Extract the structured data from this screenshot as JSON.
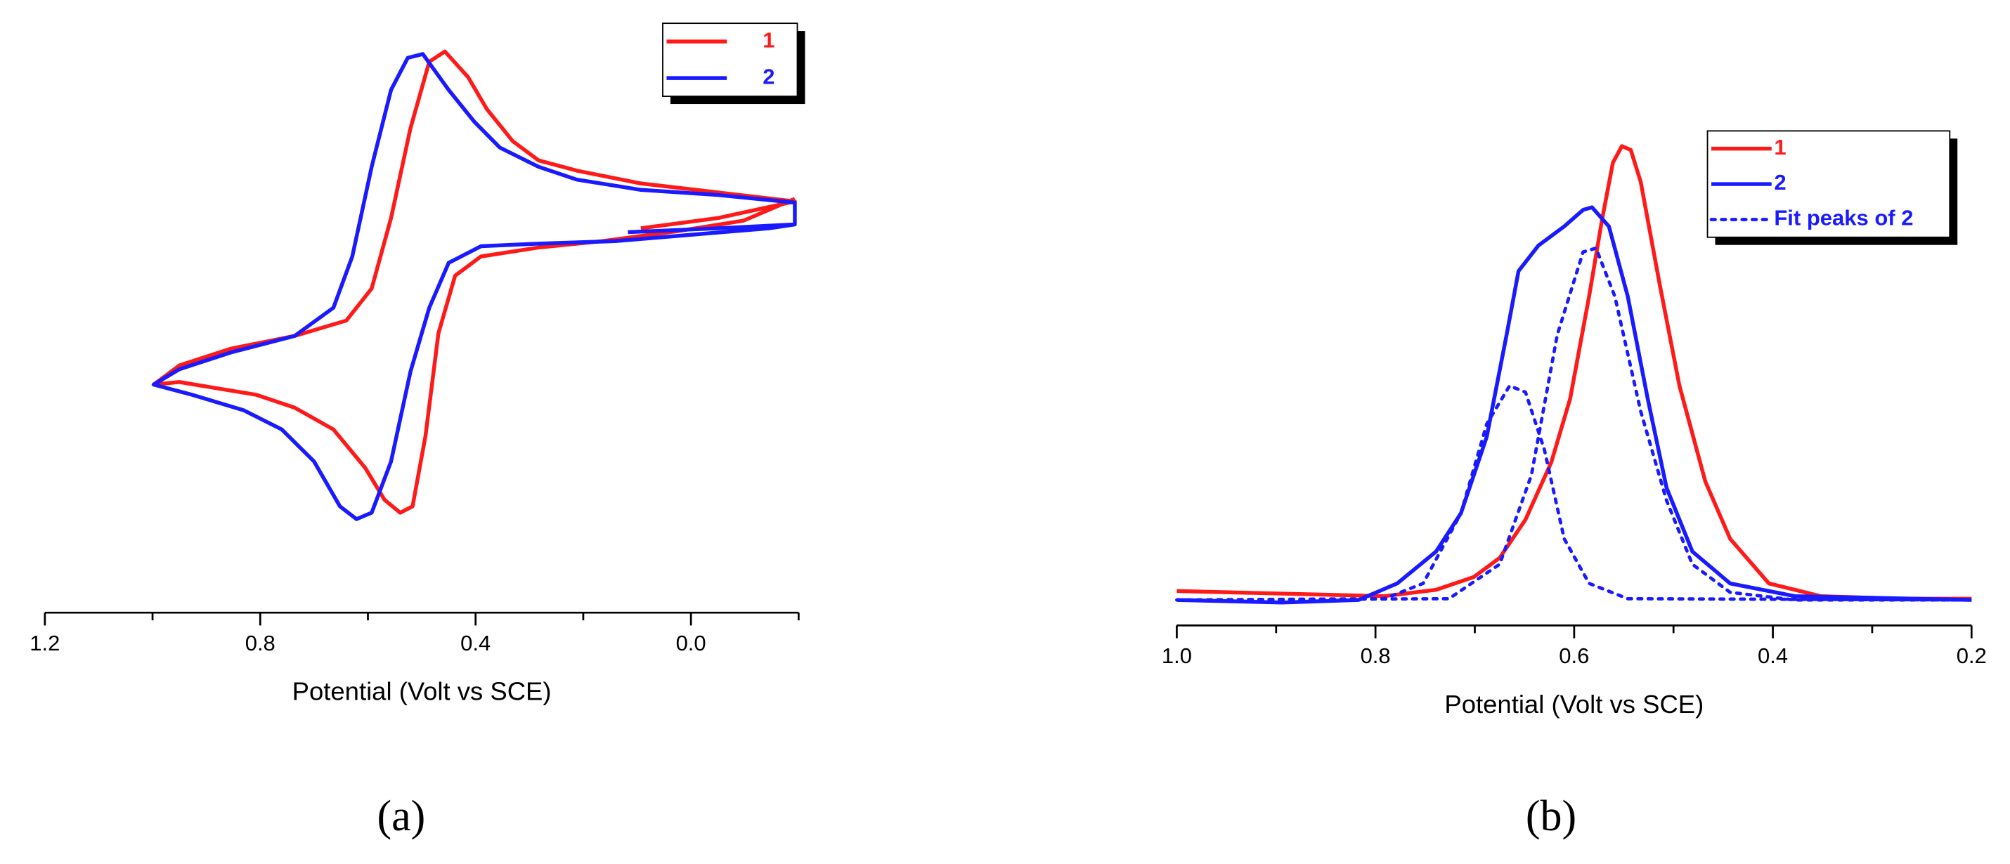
{
  "chart_data": [
    {
      "type": "line",
      "panel_label": "(a)",
      "x_label": "Potential (Volt vs SCE)",
      "xlim": [
        1.2,
        -0.2
      ],
      "xticks": [
        1.2,
        0.8,
        0.4,
        {
          "value": 0,
          "label": "0.0"
        }
      ],
      "xminorticks": [
        1.0,
        0.6,
        0.2,
        -0.2
      ],
      "ylim": [
        -1.78,
        2.8
      ],
      "legend": "upper right",
      "series": [
        {
          "name": "1",
          "color": "#ff1a1a",
          "style": "solid",
          "x": [
            0.093,
            -0.05,
            -0.193,
            -0.05,
            0.093,
            0.212,
            0.283,
            0.331,
            0.379,
            0.414,
            0.457,
            0.486,
            0.521,
            0.557,
            0.593,
            0.64,
            0.736,
            0.855,
            0.95,
            0.998,
            0.95,
            0.879,
            0.807,
            0.736,
            0.664,
            0.605,
            0.569,
            0.54,
            0.517,
            0.493,
            0.469,
            0.438,
            0.39,
            0.283,
            0.164,
            0.021,
            -0.098,
            -0.193
          ],
          "values": [
            1.22,
            1.3,
            1.43,
            1.5,
            1.57,
            1.67,
            1.75,
            1.9,
            2.15,
            2.4,
            2.6,
            2.52,
            2.0,
            1.3,
            0.75,
            0.5,
            0.38,
            0.28,
            0.15,
            0,
            0.02,
            -0.03,
            -0.08,
            -0.18,
            -0.35,
            -0.65,
            -0.9,
            -1.0,
            -0.95,
            -0.4,
            0.4,
            0.85,
            1.0,
            1.07,
            1.12,
            1.2,
            1.28,
            1.45
          ]
        },
        {
          "name": "2",
          "color": "#1a1aff",
          "style": "solid",
          "x": [
            0.117,
            -0.05,
            -0.193,
            -0.193,
            -0.05,
            0.093,
            0.212,
            0.283,
            0.355,
            0.402,
            0.45,
            0.498,
            0.526,
            0.557,
            0.593,
            0.629,
            0.664,
            0.736,
            0.855,
            0.95,
            0.998,
            0.926,
            0.831,
            0.76,
            0.7,
            0.652,
            0.621,
            0.593,
            0.557,
            0.521,
            0.486,
            0.45,
            0.39,
            0.283,
            0.14,
            -0.002,
            -0.145,
            -0.193
          ],
          "values": [
            1.19,
            1.22,
            1.25,
            1.42,
            1.48,
            1.52,
            1.6,
            1.7,
            1.85,
            2.05,
            2.3,
            2.58,
            2.55,
            2.3,
            1.7,
            1.0,
            0.6,
            0.38,
            0.25,
            0.12,
            0,
            -0.08,
            -0.2,
            -0.35,
            -0.6,
            -0.95,
            -1.05,
            -1.0,
            -0.6,
            0.1,
            0.6,
            0.95,
            1.08,
            1.1,
            1.12,
            1.17,
            1.22,
            1.25
          ]
        }
      ]
    },
    {
      "type": "line",
      "panel_label": "(b)",
      "x_label": "Potential (Volt vs SCE)",
      "xlim": [
        1.0,
        0.2
      ],
      "xticks": [
        {
          "value": 1,
          "label": "1.0"
        },
        0.8,
        0.6,
        0.4,
        0.2
      ],
      "xminorticks": [
        0.9,
        0.7,
        0.5,
        0.3
      ],
      "ylim": [
        -0.2,
        3.8
      ],
      "legend": "upper right",
      "series": [
        {
          "name": "1",
          "color": "#ff1a1a",
          "style": "solid",
          "x": [
            1.0,
            0.894,
            0.791,
            0.739,
            0.701,
            0.675,
            0.649,
            0.623,
            0.604,
            0.585,
            0.572,
            0.561,
            0.552,
            0.543,
            0.533,
            0.514,
            0.494,
            0.468,
            0.443,
            0.404,
            0.352,
            0.275,
            0.2
          ],
          "values": [
            0.07,
            0.05,
            0.03,
            0.08,
            0.18,
            0.33,
            0.63,
            1.08,
            1.58,
            2.38,
            2.98,
            3.43,
            3.56,
            3.53,
            3.28,
            2.48,
            1.68,
            0.93,
            0.48,
            0.13,
            0.03,
            0.01,
            0.01
          ]
        },
        {
          "name": "2",
          "color": "#1a1aff",
          "style": "solid",
          "x": [
            1.0,
            0.894,
            0.817,
            0.778,
            0.739,
            0.714,
            0.688,
            0.668,
            0.656,
            0.636,
            0.61,
            0.591,
            0.582,
            0.565,
            0.546,
            0.526,
            0.507,
            0.481,
            0.443,
            0.378,
            0.2
          ],
          "values": [
            0,
            -0.02,
            0,
            0.13,
            0.38,
            0.68,
            1.28,
            2.08,
            2.58,
            2.78,
            2.93,
            3.06,
            3.08,
            2.93,
            2.38,
            1.58,
            0.88,
            0.38,
            0.13,
            0.03,
            0
          ]
        },
        {
          "name": "Fit peaks of 2",
          "color": "#1a1aff",
          "style": "dotted",
          "x": [
            1.0,
            0.791,
            0.752,
            0.714,
            0.688,
            0.665,
            0.649,
            0.63,
            0.61,
            0.585,
            0.546,
            0.2,
            null,
            1.0,
            0.726,
            0.675,
            0.643,
            0.617,
            0.591,
            0.578,
            0.559,
            0.533,
            0.507,
            0.481,
            0.443,
            0.378,
            0.2
          ],
          "values": [
            0,
            0.01,
            0.13,
            0.68,
            1.38,
            1.68,
            1.63,
            1.18,
            0.48,
            0.13,
            0.01,
            0,
            null,
            0,
            0.01,
            0.28,
            0.98,
            2.08,
            2.73,
            2.76,
            2.38,
            1.48,
            0.78,
            0.28,
            0.06,
            0,
            0
          ]
        }
      ]
    }
  ]
}
